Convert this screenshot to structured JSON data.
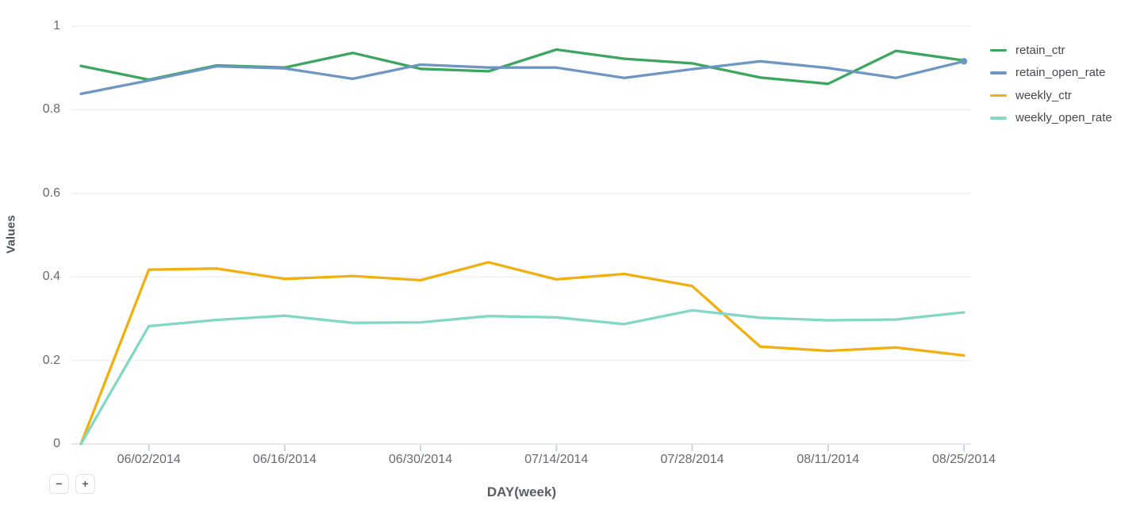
{
  "chart_data": {
    "type": "line",
    "title": "",
    "xlabel": "DAY(week)",
    "ylabel": "Values",
    "ylim": [
      0,
      1
    ],
    "grid": true,
    "legend_position": "right",
    "x": [
      "05/26/2014",
      "06/02/2014",
      "06/09/2014",
      "06/16/2014",
      "06/23/2014",
      "06/30/2014",
      "07/07/2014",
      "07/14/2014",
      "07/21/2014",
      "07/28/2014",
      "08/04/2014",
      "08/11/2014",
      "08/18/2014",
      "08/25/2014"
    ],
    "x_tick_labels": [
      "06/02/2014",
      "06/16/2014",
      "06/30/2014",
      "07/14/2014",
      "07/28/2014",
      "08/11/2014",
      "08/25/2014"
    ],
    "y_ticks": [
      0,
      0.2,
      0.4,
      0.6,
      0.8,
      1
    ],
    "y_tick_labels": [
      "0",
      "0.2",
      "0.4",
      "0.6",
      "0.8",
      "1"
    ],
    "series": [
      {
        "name": "retain_ctr",
        "color": "#3ca65f",
        "values": [
          0.905,
          0.872,
          0.906,
          0.901,
          0.936,
          0.898,
          0.892,
          0.944,
          0.922,
          0.911,
          0.877,
          0.862,
          0.941,
          0.918
        ]
      },
      {
        "name": "retain_open_rate",
        "color": "#6e96c3",
        "values": [
          0.838,
          0.87,
          0.904,
          0.899,
          0.874,
          0.908,
          0.901,
          0.901,
          0.876,
          0.897,
          0.916,
          0.9,
          0.876,
          0.916
        ]
      },
      {
        "name": "weekly_ctr",
        "color": "#f0b010",
        "values": [
          0,
          0.417,
          0.42,
          0.395,
          0.402,
          0.392,
          0.435,
          0.394,
          0.407,
          0.378,
          0.233,
          0.223,
          0.231,
          0.212
        ]
      },
      {
        "name": "weekly_open_rate",
        "color": "#82d8c3",
        "values": [
          0,
          0.282,
          0.297,
          0.307,
          0.29,
          0.291,
          0.306,
          0.303,
          0.287,
          0.32,
          0.302,
          0.296,
          0.298,
          0.315
        ]
      }
    ],
    "colors": {
      "grid": "#eceef1",
      "baseline": "#dfe1e5",
      "tick_mark": "#c7d3e8"
    }
  },
  "controls": {
    "zoom_out_label": "−",
    "zoom_in_label": "+"
  }
}
